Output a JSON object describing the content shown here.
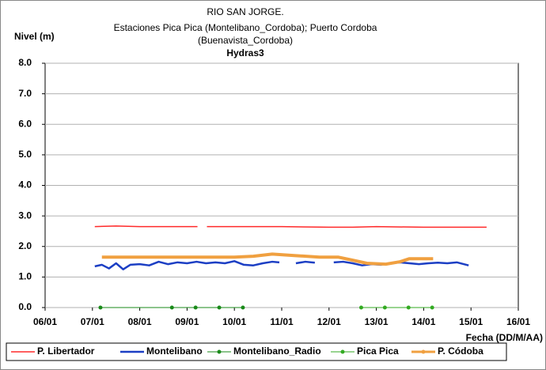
{
  "chart_data": {
    "type": "line",
    "title": "RIO SAN JORGE.",
    "subtitle": [
      "Estaciones Pica Pica (Montelibano_Cordoba); Puerto Cordoba",
      "(Buenavista_Cordoba)",
      "Hydras3"
    ],
    "ylabel": "Nivel (m)",
    "xlabel": "Fecha (DD/M/AA)",
    "xlim": [
      6,
      16
    ],
    "xticks": [
      {
        "value": 6,
        "label": "06/01"
      },
      {
        "value": 7,
        "label": "07/01"
      },
      {
        "value": 8,
        "label": "08/01"
      },
      {
        "value": 9,
        "label": "09/01"
      },
      {
        "value": 10,
        "label": "10/01"
      },
      {
        "value": 11,
        "label": "11/01"
      },
      {
        "value": 12,
        "label": "12/01"
      },
      {
        "value": 13,
        "label": "13/01"
      },
      {
        "value": 14,
        "label": "14/01"
      },
      {
        "value": 15,
        "label": "15/01"
      },
      {
        "value": 16,
        "label": "16/01"
      }
    ],
    "ylim": [
      0,
      8
    ],
    "yticks": [
      {
        "value": 0,
        "label": "0.0"
      },
      {
        "value": 1,
        "label": "1.0"
      },
      {
        "value": 2,
        "label": "2.0"
      },
      {
        "value": 3,
        "label": "3.0"
      },
      {
        "value": 4,
        "label": "4.0"
      },
      {
        "value": 5,
        "label": "5.0"
      },
      {
        "value": 6,
        "label": "6.0"
      },
      {
        "value": 7,
        "label": "7.0"
      },
      {
        "value": 8,
        "label": "8.0"
      }
    ],
    "grid": true,
    "legend": "bottom",
    "series": [
      {
        "name": "P. Libertador",
        "color": "#ff2a2a",
        "width": 1.5,
        "marker": false,
        "x": [
          7.05,
          7.5,
          8,
          8.5,
          9,
          9.22,
          9.32,
          9.42,
          10,
          11,
          12,
          12.5,
          13,
          14,
          15.33
        ],
        "values": [
          2.65,
          2.67,
          2.65,
          2.65,
          2.65,
          2.65,
          null,
          2.65,
          2.65,
          2.65,
          2.63,
          2.63,
          2.65,
          2.63,
          2.63
        ]
      },
      {
        "name": "Montelibano",
        "color": "#1c3fc4",
        "width": 2.5,
        "marker": false,
        "x": [
          7.05,
          7.2,
          7.35,
          7.5,
          7.65,
          7.8,
          8.0,
          8.2,
          8.4,
          8.6,
          8.8,
          9.0,
          9.2,
          9.4,
          9.6,
          9.8,
          10.0,
          10.2,
          10.4,
          10.6,
          10.8,
          10.95,
          11.2,
          11.3,
          11.5,
          11.7,
          11.9,
          12.1,
          12.3,
          12.5,
          12.7,
          12.9,
          13.1,
          13.3,
          13.5,
          13.7,
          13.9,
          14.1,
          14.3,
          14.5,
          14.7,
          14.95
        ],
        "values": [
          1.35,
          1.4,
          1.28,
          1.45,
          1.25,
          1.4,
          1.42,
          1.38,
          1.5,
          1.42,
          1.48,
          1.45,
          1.5,
          1.45,
          1.48,
          1.45,
          1.52,
          1.4,
          1.38,
          1.45,
          1.5,
          1.48,
          null,
          1.45,
          1.5,
          1.47,
          null,
          1.48,
          1.5,
          1.45,
          1.38,
          1.42,
          1.4,
          1.45,
          1.48,
          1.45,
          1.42,
          1.45,
          1.47,
          1.45,
          1.48,
          1.38
        ]
      },
      {
        "name": "Montelibano_Radio",
        "color": "#1a8a1a",
        "width": 1,
        "marker": true,
        "x": [
          7.17,
          8.68,
          9.18,
          9.68,
          10.18
        ],
        "values": [
          0,
          0,
          0,
          0,
          0
        ]
      },
      {
        "name": "Pica Pica",
        "color": "#33aa22",
        "width": 1,
        "marker": true,
        "x": [
          12.68,
          13.18,
          13.68,
          14.18
        ],
        "values": [
          0,
          0,
          0,
          0
        ]
      },
      {
        "name": "P. Códoba",
        "color": "#f0a040",
        "width": 4,
        "marker": false,
        "x": [
          7.2,
          8,
          9,
          10,
          10.4,
          10.8,
          11.3,
          11.8,
          12.2,
          12.5,
          12.8,
          13.2,
          13.5,
          13.7,
          14.2
        ],
        "values": [
          1.65,
          1.65,
          1.65,
          1.65,
          1.68,
          1.75,
          1.7,
          1.65,
          1.65,
          1.55,
          1.45,
          1.42,
          1.5,
          1.6,
          1.6
        ]
      }
    ]
  }
}
